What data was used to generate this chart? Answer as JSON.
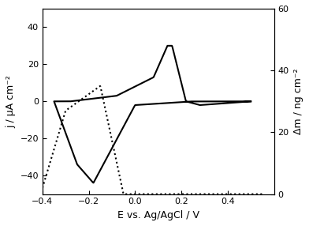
{
  "xlim": [
    -0.4,
    0.6
  ],
  "ylim_left": [
    -50,
    50
  ],
  "ylim_right": [
    0,
    60
  ],
  "yticks_left": [
    -40,
    -20,
    0,
    20,
    40
  ],
  "yticks_right": [
    0,
    20,
    40,
    60
  ],
  "xticks": [
    -0.4,
    -0.2,
    0.0,
    0.2,
    0.4
  ],
  "xlabel": "E vs. Ag/AgCl / V",
  "ylabel_left": "j / μA cm⁻²",
  "ylabel_right": "Δm / ng cm⁻²",
  "bg_color": "#ffffff",
  "line_color": "black",
  "figsize": [
    3.92,
    2.86
  ],
  "dpi": 100
}
